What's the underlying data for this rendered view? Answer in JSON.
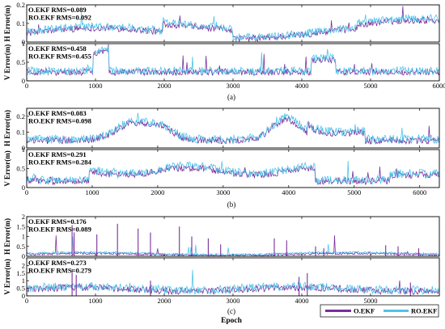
{
  "legend": {
    "items": [
      {
        "label": "O.EKF",
        "color": "#7a2e9a"
      },
      {
        "label": "RO.EKF",
        "color": "#4fc3ea"
      }
    ]
  },
  "x_axis_label": "Epoch",
  "colors": {
    "o_ekf": "#7a2e9a",
    "ro_ekf": "#4fc3ea"
  },
  "chart_data": [
    {
      "type": "line",
      "group": "(a)",
      "ylabel": "H Error(m)",
      "xlim": [
        0,
        6000
      ],
      "ylim": [
        0,
        0.2
      ],
      "xticks": [
        "0",
        "1000",
        "2000",
        "3000",
        "4000",
        "5000",
        "6000"
      ],
      "yticks": [
        "0",
        "0.1",
        "0.2"
      ],
      "annotations": [
        "O.EKF RMS=0.089",
        "RO.EKF RMS=0.092"
      ],
      "series": [
        {
          "name": "O.EKF",
          "rms": 0.089
        },
        {
          "name": "RO.EKF",
          "rms": 0.092
        }
      ]
    },
    {
      "type": "line",
      "group": "(a)",
      "ylabel": "V Error(m)",
      "xlim": [
        0,
        6000
      ],
      "ylim": [
        0,
        1
      ],
      "xticks": [
        "0",
        "1000",
        "2000",
        "3000",
        "4000",
        "5000",
        "6000"
      ],
      "yticks": [
        "0",
        "0.5",
        "1"
      ],
      "annotations": [
        "O.EKF RMS=0.458",
        "RO.EKF RMS=0.455"
      ],
      "series": [
        {
          "name": "O.EKF",
          "rms": 0.458
        },
        {
          "name": "RO.EKF",
          "rms": 0.455
        }
      ]
    },
    {
      "type": "line",
      "group": "(b)",
      "ylabel": "H Error(m)",
      "xlim": [
        0,
        6300
      ],
      "ylim": [
        0,
        0.25
      ],
      "xticks": [
        "0",
        "1000",
        "2000",
        "3000",
        "4000",
        "5000",
        "6000"
      ],
      "yticks": [
        "0",
        "0.1",
        "0.2"
      ],
      "annotations": [
        "O.EKF RMS=0.083",
        "RO.EKF RMS=0.098"
      ],
      "series": [
        {
          "name": "O.EKF",
          "rms": 0.083
        },
        {
          "name": "RO.EKF",
          "rms": 0.098
        }
      ]
    },
    {
      "type": "line",
      "group": "(b)",
      "ylabel": "V Error(m)",
      "xlim": [
        0,
        6300
      ],
      "ylim": [
        0,
        1
      ],
      "xticks": [
        "0",
        "1000",
        "2000",
        "3000",
        "4000",
        "5000",
        "6000"
      ],
      "yticks": [
        "0",
        "0.5",
        "1"
      ],
      "annotations": [
        "O.EKF RMS=0.291",
        "RO.EKF RMS=0.284"
      ],
      "series": [
        {
          "name": "O.EKF",
          "rms": 0.291
        },
        {
          "name": "RO.EKF",
          "rms": 0.284
        }
      ]
    },
    {
      "type": "line",
      "group": "(c)",
      "ylabel": "H Error(m)",
      "xlim": [
        0,
        6000
      ],
      "ylim": [
        0,
        2
      ],
      "xticks": [
        "0",
        "1000",
        "2000",
        "3000",
        "4000",
        "5000"
      ],
      "yticks": [
        "0",
        "0.5",
        "1",
        "1.5",
        "2"
      ],
      "annotations": [
        "O.EKF RMS=0.176",
        "RO.EKF RMS=0.089"
      ],
      "series": [
        {
          "name": "O.EKF",
          "rms": 0.176
        },
        {
          "name": "RO.EKF",
          "rms": 0.089
        }
      ]
    },
    {
      "type": "line",
      "group": "(c)",
      "ylabel": "V Error(m)",
      "xlim": [
        0,
        6000
      ],
      "ylim": [
        0,
        2.5
      ],
      "xticks": [
        "0",
        "1000",
        "2000",
        "3000",
        "4000",
        "5000"
      ],
      "yticks": [
        "0",
        "0.5",
        "1",
        "1.5",
        "2"
      ],
      "annotations": [
        "O.EKF RMS=0.273",
        "RO.EKF RMS=0.279"
      ],
      "series": [
        {
          "name": "O.EKF",
          "rms": 0.273
        },
        {
          "name": "RO.EKF",
          "rms": 0.279
        }
      ]
    }
  ]
}
